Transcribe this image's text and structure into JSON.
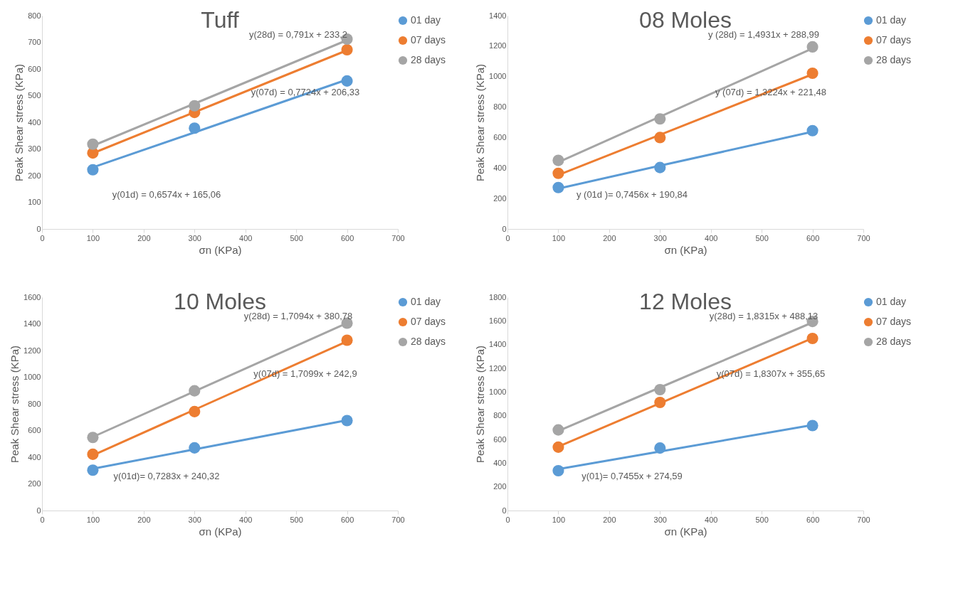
{
  "chart_data": [
    {
      "type": "scatter",
      "title": "Tuff",
      "xlabel": "σn (KPa)",
      "ylabel": "Peak Shear stress (KPa)",
      "xlim": [
        0,
        700
      ],
      "xticks": [
        0,
        100,
        200,
        300,
        400,
        500,
        600,
        700
      ],
      "ylim": [
        0,
        800
      ],
      "yticks": [
        0,
        100,
        200,
        300,
        400,
        500,
        600,
        700,
        800
      ],
      "grid": false,
      "legend": "right",
      "x": [
        100,
        300,
        600
      ],
      "series": [
        {
          "name": "01 day",
          "color": "#5b9bd5",
          "marker": "circle",
          "values": [
            222,
            378,
            555
          ]
        },
        {
          "name": "07 days",
          "color": "#ed7d31",
          "marker": "circle",
          "values": [
            285,
            437,
            672
          ]
        },
        {
          "name": "28 days",
          "color": "#a5a5a5",
          "marker": "circle",
          "values": [
            318,
            462,
            712
          ]
        },
        {
          "type": "line",
          "color": "#5b9bd5",
          "values": [
            231,
            362,
            560
          ]
        },
        {
          "type": "line",
          "color": "#ed7d31",
          "values": [
            284,
            438,
            670
          ]
        },
        {
          "type": "line",
          "color": "#a5a5a5",
          "values": [
            312,
            470,
            708
          ]
        }
      ],
      "annotations": [
        "y(28d) = 0,791x + 233,2",
        "y(07d) = 0,7724x + 206,33",
        "y(01d) = 0,6574x + 165,06"
      ]
    },
    {
      "type": "scatter",
      "title": "08 Moles",
      "xlabel": "σn (KPa)",
      "ylabel": "Peak Shear stress (KPa)",
      "xlim": [
        0,
        700
      ],
      "xticks": [
        0,
        100,
        200,
        300,
        400,
        500,
        600,
        700
      ],
      "ylim": [
        0,
        1400
      ],
      "yticks": [
        0,
        200,
        400,
        600,
        800,
        1000,
        1200,
        1400
      ],
      "grid": false,
      "legend": "right",
      "x": [
        100,
        300,
        600
      ],
      "series": [
        {
          "name": "01 day",
          "color": "#5b9bd5",
          "marker": "circle",
          "values": [
            272,
            403,
            645
          ]
        },
        {
          "name": "07 days",
          "color": "#ed7d31",
          "marker": "circle",
          "values": [
            365,
            600,
            1022
          ]
        },
        {
          "name": "28 days",
          "color": "#a5a5a5",
          "marker": "circle",
          "values": [
            450,
            722,
            1195
          ]
        },
        {
          "type": "line",
          "color": "#5b9bd5",
          "values": [
            265,
            415,
            638
          ]
        },
        {
          "type": "line",
          "color": "#ed7d31",
          "values": [
            354,
            618,
            1015
          ]
        },
        {
          "type": "line",
          "color": "#a5a5a5",
          "values": [
            438,
            737,
            1185
          ]
        }
      ],
      "annotations": [
        "y (28d) = 1,4931x + 288,99",
        "y (07d) = 1,3224x + 221,48",
        "y (01d )= 0,7456x + 190,84"
      ]
    },
    {
      "type": "scatter",
      "title": "10 Moles",
      "xlabel": "σn (KPa)",
      "ylabel": "Peak Shear stress (KPa)",
      "xlim": [
        0,
        700
      ],
      "xticks": [
        0,
        100,
        200,
        300,
        400,
        500,
        600,
        700
      ],
      "ylim": [
        0,
        1600
      ],
      "yticks": [
        0,
        200,
        400,
        600,
        800,
        1000,
        1200,
        1400,
        1600
      ],
      "grid": false,
      "legend": "right",
      "x": [
        100,
        300,
        600
      ],
      "series": [
        {
          "name": "01 day",
          "color": "#5b9bd5",
          "marker": "circle",
          "values": [
            303,
            470,
            675
          ]
        },
        {
          "name": "07 days",
          "color": "#ed7d31",
          "marker": "circle",
          "values": [
            422,
            742,
            1277
          ]
        },
        {
          "name": "28 days",
          "color": "#a5a5a5",
          "marker": "circle",
          "values": [
            548,
            898,
            1405
          ]
        },
        {
          "type": "line",
          "color": "#5b9bd5",
          "values": [
            313,
            459,
            677
          ]
        },
        {
          "type": "line",
          "color": "#ed7d31",
          "values": [
            414,
            756,
            1269
          ]
        },
        {
          "type": "line",
          "color": "#a5a5a5",
          "values": [
            552,
            894,
            1406
          ]
        }
      ],
      "annotations": [
        "y(28d) = 1,7094x + 380,78",
        "y(07d) = 1,7099x + 242,9",
        "y(01d)= 0,7283x + 240,32"
      ]
    },
    {
      "type": "scatter",
      "title": "12 Moles",
      "xlabel": "σn (KPa)",
      "ylabel": "Peak Shear stress (KPa)",
      "xlim": [
        0,
        700
      ],
      "xticks": [
        0,
        100,
        200,
        300,
        400,
        500,
        600,
        700
      ],
      "ylim": [
        0,
        1800
      ],
      "yticks": [
        0,
        200,
        400,
        600,
        800,
        1000,
        1200,
        1400,
        1600,
        1800
      ],
      "grid": false,
      "legend": "right",
      "x": [
        100,
        300,
        600
      ],
      "series": [
        {
          "name": "01 day",
          "color": "#5b9bd5",
          "marker": "circle",
          "values": [
            336,
            527,
            717
          ]
        },
        {
          "name": "07 days",
          "color": "#ed7d31",
          "marker": "circle",
          "values": [
            535,
            912,
            1452
          ]
        },
        {
          "name": "28 days",
          "color": "#a5a5a5",
          "marker": "circle",
          "values": [
            680,
            1020,
            1595
          ]
        },
        {
          "type": "line",
          "color": "#5b9bd5",
          "values": [
            349,
            498,
            722
          ]
        },
        {
          "type": "line",
          "color": "#ed7d31",
          "values": [
            539,
            905,
            1454
          ]
        },
        {
          "type": "line",
          "color": "#a5a5a5",
          "values": [
            671,
            1038,
            1587
          ]
        }
      ],
      "annotations": [
        "y(28d) = 1,8315x + 488,13",
        "y(07d) = 1,8307x + 355,65",
        "y(01)= 0,7455x + 274,59"
      ]
    }
  ]
}
